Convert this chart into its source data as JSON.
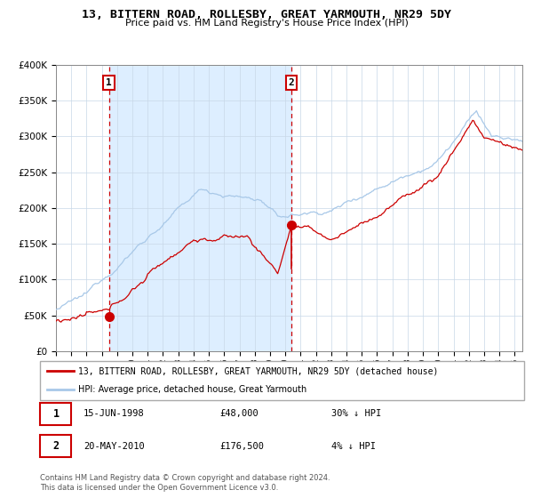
{
  "title": "13, BITTERN ROAD, ROLLESBY, GREAT YARMOUTH, NR29 5DY",
  "subtitle": "Price paid vs. HM Land Registry's House Price Index (HPI)",
  "legend_line1": "13, BITTERN ROAD, ROLLESBY, GREAT YARMOUTH, NR29 5DY (detached house)",
  "legend_line2": "HPI: Average price, detached house, Great Yarmouth",
  "sale1_date": "15-JUN-1998",
  "sale1_price": 48000,
  "sale1_pct": "30% ↓ HPI",
  "sale2_date": "20-MAY-2010",
  "sale2_price": 176500,
  "sale2_pct": "4% ↓ HPI",
  "footnote": "Contains HM Land Registry data © Crown copyright and database right 2024.\nThis data is licensed under the Open Government Licence v3.0.",
  "hpi_color": "#a8c8e8",
  "price_color": "#cc0000",
  "bg_color": "#ddeeff",
  "grid_color": "#c8d8e8",
  "vline_color": "#cc0000",
  "sale1_year": 1998.46,
  "sale2_year": 2010.38,
  "ylim": [
    0,
    400000
  ],
  "xlim_start": 1995.0,
  "xlim_end": 2025.5
}
